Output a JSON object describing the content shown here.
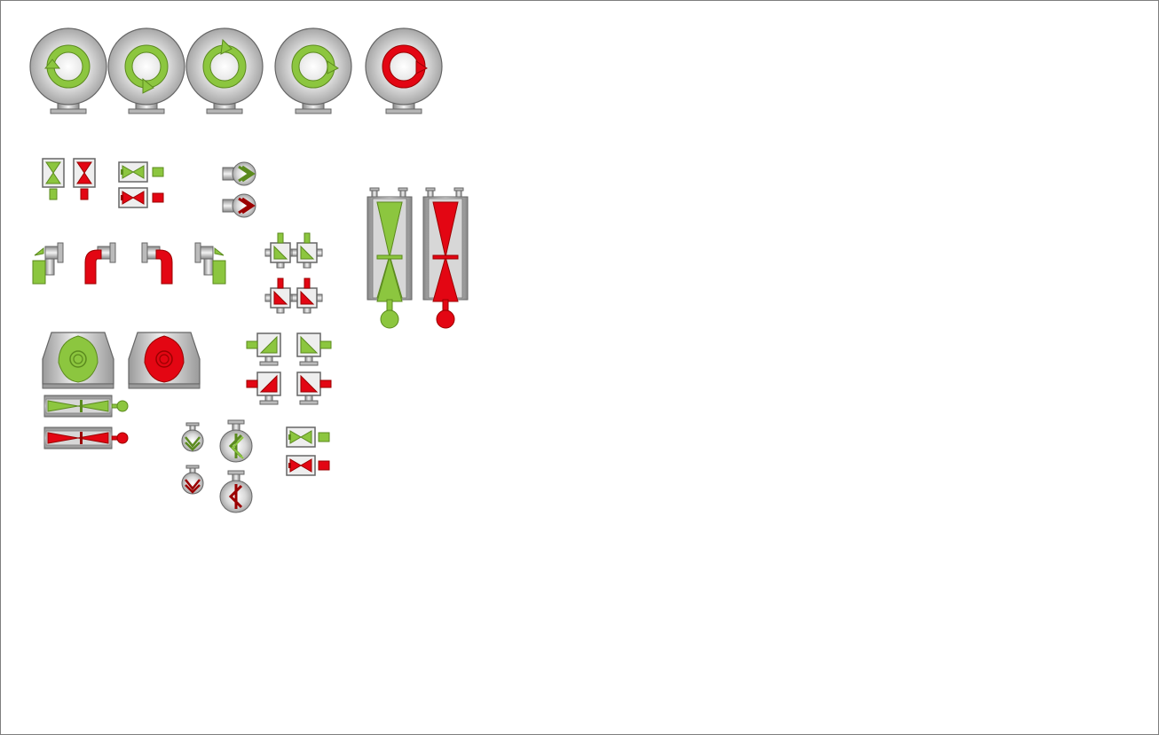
{
  "colors": {
    "on": "#8cc63f",
    "off": "#e30613",
    "outline": "#555555",
    "metal_light": "#f4f4f4",
    "metal_mid": "#cfcfcf",
    "metal_dark": "#8a8a8a",
    "frame": "#7f7f7f"
  },
  "symbols": {
    "pump_rotation_ccw_on": "pump-ccw-on-icon",
    "pump_rotation_cw_on": "pump-cw-on-icon",
    "pump_rotation_off": "pump-off-icon",
    "valve_on": "valve-on-icon",
    "valve_off": "valve-off-icon",
    "fan_on": "fan-on-icon",
    "fan_off": "fan-off-icon",
    "blower_on": "blower-on-icon",
    "blower_off": "blower-off-icon",
    "damper_on": "damper-on-icon",
    "damper_off": "damper-off-icon"
  }
}
